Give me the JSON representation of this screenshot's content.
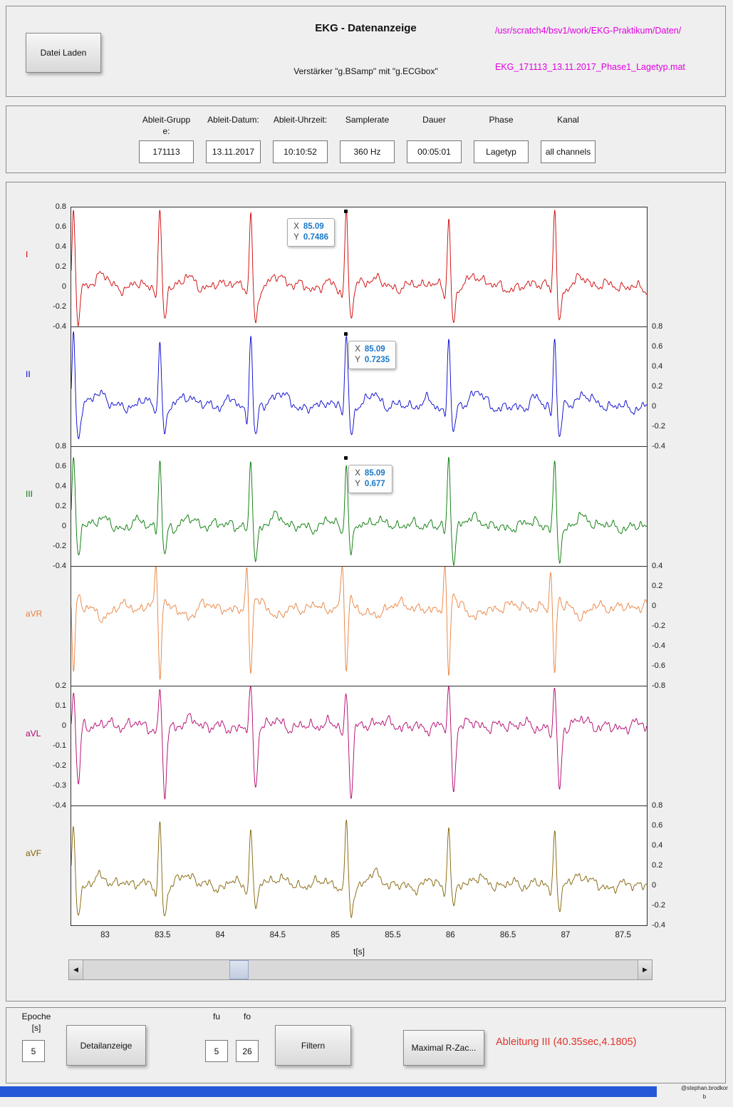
{
  "header": {
    "load_button": "Datei Laden",
    "title": "EKG - Datenanzeige",
    "subtitle": "Verstärker \"g.BSamp\" mit \"g.ECGbox\"",
    "path_dir": "/usr/scratch4/bsv1/work/EKG-Praktikum/Daten/",
    "path_file": "EKG_171113_13.11.2017_Phase1_Lagetyp.mat"
  },
  "metadata": {
    "fields": [
      {
        "key": "ableit-gruppe",
        "label": "Ableit-Gruppe:",
        "value": "171113"
      },
      {
        "key": "ableit-datum",
        "label": "Ableit-Datum:",
        "value": "13.11.2017"
      },
      {
        "key": "ableit-uhrzeit",
        "label": "Ableit-Uhrzeit:",
        "value": "10:10:52"
      },
      {
        "key": "samplerate",
        "label": "Samplerate",
        "value": "360 Hz"
      },
      {
        "key": "dauer",
        "label": "Dauer",
        "value": "00:05:01"
      },
      {
        "key": "phase",
        "label": "Phase",
        "value": "Lagetyp"
      },
      {
        "key": "kanal",
        "label": "Kanal",
        "value": "all channels"
      }
    ]
  },
  "chart_data": {
    "type": "line",
    "description": "Six stacked ECG limb-lead traces (I, II, III, aVR, aVL, aVF) over a 5 second epoch with QRS complexes at the listed beat times",
    "xlabel": "t[s]",
    "x_range": [
      82.7,
      87.7
    ],
    "x_ticks": [
      83,
      83.5,
      84,
      84.5,
      85,
      85.5,
      86,
      86.5,
      87,
      87.5
    ],
    "beat_times": [
      82.72,
      83.47,
      84.26,
      85.09,
      85.98,
      86.9
    ],
    "tooltip_value_color": "#1878c8",
    "series": [
      {
        "name": "I",
        "color": "#cc0000",
        "axis_side": "left",
        "ylim": [
          -0.4,
          0.8
        ],
        "yticks": [
          0.8,
          0.6,
          0.4,
          0.2,
          0,
          -0.2,
          -0.4
        ],
        "morphology": {
          "p": 0.05,
          "q": -0.1,
          "r": 0.75,
          "s": -0.35,
          "t": 0.1
        },
        "noise": 0.05
      },
      {
        "name": "II",
        "color": "#0000cc",
        "axis_side": "right",
        "ylim": [
          -0.4,
          0.8
        ],
        "yticks": [
          0.8,
          0.6,
          0.4,
          0.2,
          0,
          -0.2,
          -0.4
        ],
        "morphology": {
          "p": 0.07,
          "q": -0.1,
          "r": 0.72,
          "s": -0.3,
          "t": 0.13
        },
        "noise": 0.05
      },
      {
        "name": "III",
        "color": "#007700",
        "axis_side": "left",
        "ylim": [
          -0.4,
          0.8
        ],
        "yticks": [
          0.8,
          0.6,
          0.4,
          0.2,
          0,
          -0.2,
          -0.4
        ],
        "morphology": {
          "p": 0.05,
          "q": -0.08,
          "r": 0.67,
          "s": -0.32,
          "t": 0.08
        },
        "noise": 0.05
      },
      {
        "name": "aVR",
        "color": "#e8803c",
        "axis_side": "right",
        "ylim": [
          -0.8,
          0.4
        ],
        "yticks": [
          0.4,
          0.2,
          0,
          -0.2,
          -0.4,
          -0.6,
          -0.8
        ],
        "morphology": {
          "p": -0.05,
          "q": 0.4,
          "r": -0.68,
          "s": 0.1,
          "t": -0.1
        },
        "noise": 0.05
      },
      {
        "name": "aVL",
        "color": "#b0006a",
        "axis_side": "left",
        "ylim": [
          -0.4,
          0.2
        ],
        "yticks": [
          0.2,
          0.1,
          0,
          -0.1,
          -0.2,
          -0.3,
          -0.4
        ],
        "morphology": {
          "p": 0.0,
          "q": -0.04,
          "r": 0.18,
          "s": -0.33,
          "t": 0.02
        },
        "noise": 0.028
      },
      {
        "name": "aVF",
        "color": "#806000",
        "axis_side": "right",
        "ylim": [
          -0.4,
          0.8
        ],
        "yticks": [
          0.8,
          0.6,
          0.4,
          0.2,
          0,
          -0.2,
          -0.4
        ],
        "morphology": {
          "p": 0.05,
          "q": -0.08,
          "r": 0.62,
          "s": -0.28,
          "t": 0.1
        },
        "noise": 0.05
      }
    ],
    "tooltips": [
      {
        "series": "I",
        "x_label": "85.09",
        "y_label": "0.7486",
        "side": "left"
      },
      {
        "series": "II",
        "x_label": "85.09",
        "y_label": "0.7235",
        "side": "right"
      },
      {
        "series": "III",
        "x_label": "85.09",
        "y_label": "0.677",
        "side": "right"
      }
    ]
  },
  "controls": {
    "epoche_label_line1": "Epoche",
    "epoche_label_line2": "[s]",
    "epoche_value": "5",
    "detail_button": "Detailanzeige",
    "fu_label": "fu",
    "fo_label": "fo",
    "fu_value": "5",
    "fo_value": "26",
    "filter_button": "Filtern",
    "rpeak_button": "Maximal R-Zac...",
    "result_text": "Ableitung III (40.35sec,4.1805)"
  },
  "footer": {
    "credit": "@stephan.brodkorb"
  },
  "colors": {
    "path_text": "#e000e0",
    "result_text": "#e0352b",
    "footer_bar": "#2458d8"
  }
}
